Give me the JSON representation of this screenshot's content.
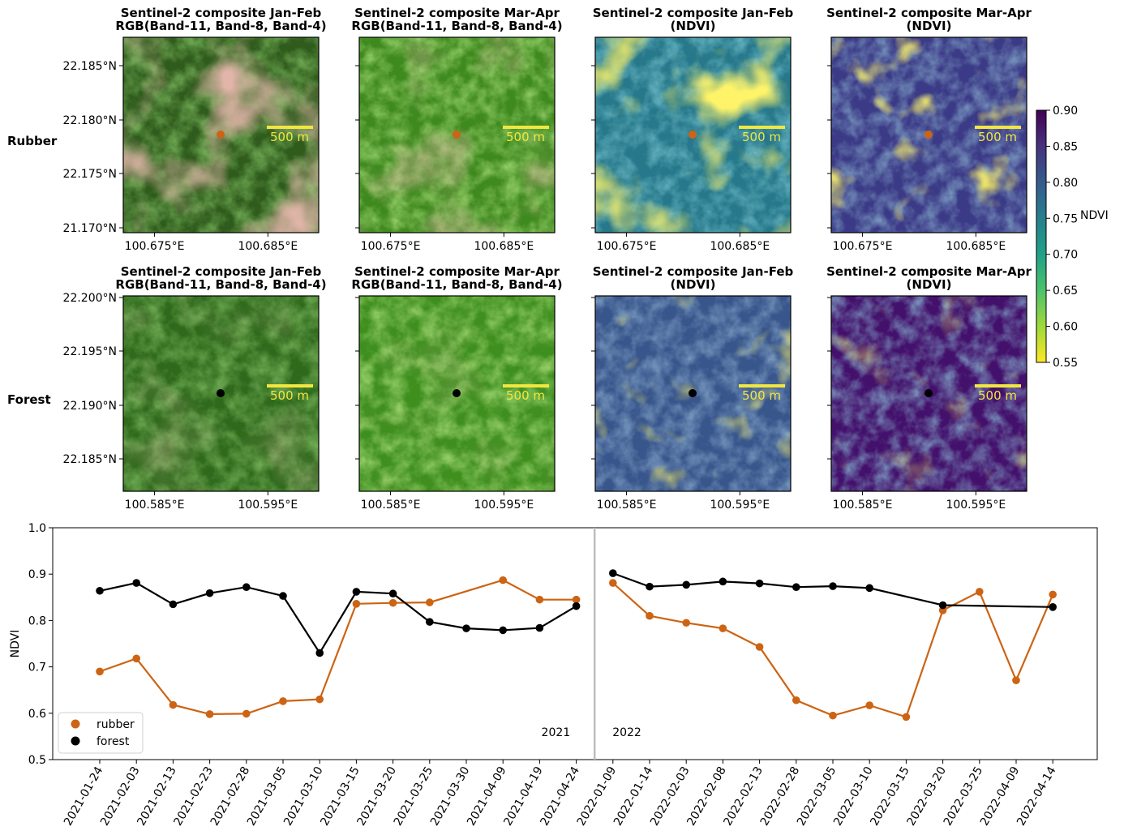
{
  "figure": {
    "row_labels": [
      "Rubber",
      "Forest"
    ],
    "panel_titles": [
      [
        "Sentinel-2 composite Jan-Feb",
        "RGB(Band-11, Band-8, Band-4)"
      ],
      [
        "Sentinel-2 composite Mar-Apr",
        "RGB(Band-11, Band-8, Band-4)"
      ],
      [
        "Sentinel-2 composite Jan-Feb",
        "(NDVI)"
      ],
      [
        "Sentinel-2 composite Mar-Apr",
        "(NDVI)"
      ]
    ],
    "scale_bar_label": "500 m",
    "rubber_map_axes": {
      "y_ticks": [
        "22.185°N",
        "22.180°N",
        "22.175°N",
        "21.170°N"
      ],
      "x_ticks": [
        "100.675°E",
        "100.685°E"
      ]
    },
    "forest_map_axes": {
      "y_ticks": [
        "22.200°N",
        "22.195°N",
        "22.190°N",
        "22.185°N"
      ],
      "x_ticks": [
        "100.585°E",
        "100.595°E"
      ]
    },
    "colorbar": {
      "label": "NDVI",
      "ticks": [
        "0.90",
        "0.85",
        "0.80",
        "0.75",
        "0.70",
        "0.65",
        "0.60",
        "0.55"
      ],
      "colormap": [
        "#fde725",
        "#a0da39",
        "#4ac16d",
        "#1fa187",
        "#277f8e",
        "#365c8d",
        "#46327e",
        "#440154"
      ]
    },
    "colors": {
      "rubber": "#cc6414",
      "forest": "#000000",
      "divider": "#bdbdbd",
      "scale_bar": "#f2e640"
    }
  },
  "chart_data": {
    "type": "line",
    "ylabel": "NDVI",
    "xlabel": "",
    "ylim": [
      0.5,
      1.0
    ],
    "y_ticks": [
      "0.5",
      "0.6",
      "0.7",
      "0.8",
      "0.9",
      "1.0"
    ],
    "year_labels": [
      "2021",
      "2022"
    ],
    "legend_position": "lower-left",
    "dates": [
      "2021-01-24",
      "2021-02-03",
      "2021-02-13",
      "2021-02-23",
      "2021-02-28",
      "2021-03-05",
      "2021-03-10",
      "2021-03-15",
      "2021-03-20",
      "2021-03-25",
      "2021-03-30",
      "2021-04-09",
      "2021-04-19",
      "2021-04-24",
      "2022-01-09",
      "2022-01-14",
      "2022-02-03",
      "2022-02-08",
      "2022-02-13",
      "2022-02-28",
      "2022-03-05",
      "2022-03-10",
      "2022-03-15",
      "2022-03-20",
      "2022-03-25",
      "2022-04-09",
      "2022-04-14"
    ],
    "series": [
      {
        "name": "rubber",
        "color": "#cc6414",
        "segments": [
          [
            [
              0,
              0.69
            ],
            [
              1,
              0.718
            ],
            [
              2,
              0.618
            ],
            [
              3,
              0.598
            ],
            [
              4,
              0.599
            ],
            [
              5,
              0.626
            ],
            [
              6,
              0.63
            ],
            [
              7,
              0.836
            ],
            [
              8,
              0.838
            ],
            [
              9,
              0.839
            ],
            [
              11,
              0.887
            ],
            [
              12,
              0.845
            ],
            [
              13,
              0.845
            ]
          ],
          [
            [
              14,
              0.881
            ],
            [
              15,
              0.81
            ],
            [
              16,
              0.795
            ],
            [
              17,
              0.783
            ],
            [
              18,
              0.743
            ],
            [
              19,
              0.628
            ],
            [
              20,
              0.595
            ],
            [
              21,
              0.617
            ],
            [
              22,
              0.592
            ],
            [
              23,
              0.822
            ],
            [
              24,
              0.862
            ],
            [
              25,
              0.671
            ],
            [
              26,
              0.856
            ]
          ]
        ]
      },
      {
        "name": "forest",
        "color": "#000000",
        "segments": [
          [
            [
              0,
              0.864
            ],
            [
              1,
              0.881
            ],
            [
              2,
              0.835
            ],
            [
              3,
              0.859
            ],
            [
              4,
              0.872
            ],
            [
              5,
              0.853
            ],
            [
              6,
              0.73
            ],
            [
              7,
              0.862
            ],
            [
              8,
              0.858
            ],
            [
              9,
              0.797
            ],
            [
              10,
              0.783
            ],
            [
              11,
              0.779
            ],
            [
              12,
              0.784
            ],
            [
              13,
              0.831
            ]
          ],
          [
            [
              14,
              0.902
            ],
            [
              15,
              0.873
            ],
            [
              16,
              0.877
            ],
            [
              17,
              0.884
            ],
            [
              18,
              0.88
            ],
            [
              19,
              0.872
            ],
            [
              20,
              0.874
            ],
            [
              21,
              0.87
            ],
            [
              23,
              0.833
            ],
            [
              26,
              0.829
            ]
          ]
        ]
      }
    ]
  }
}
